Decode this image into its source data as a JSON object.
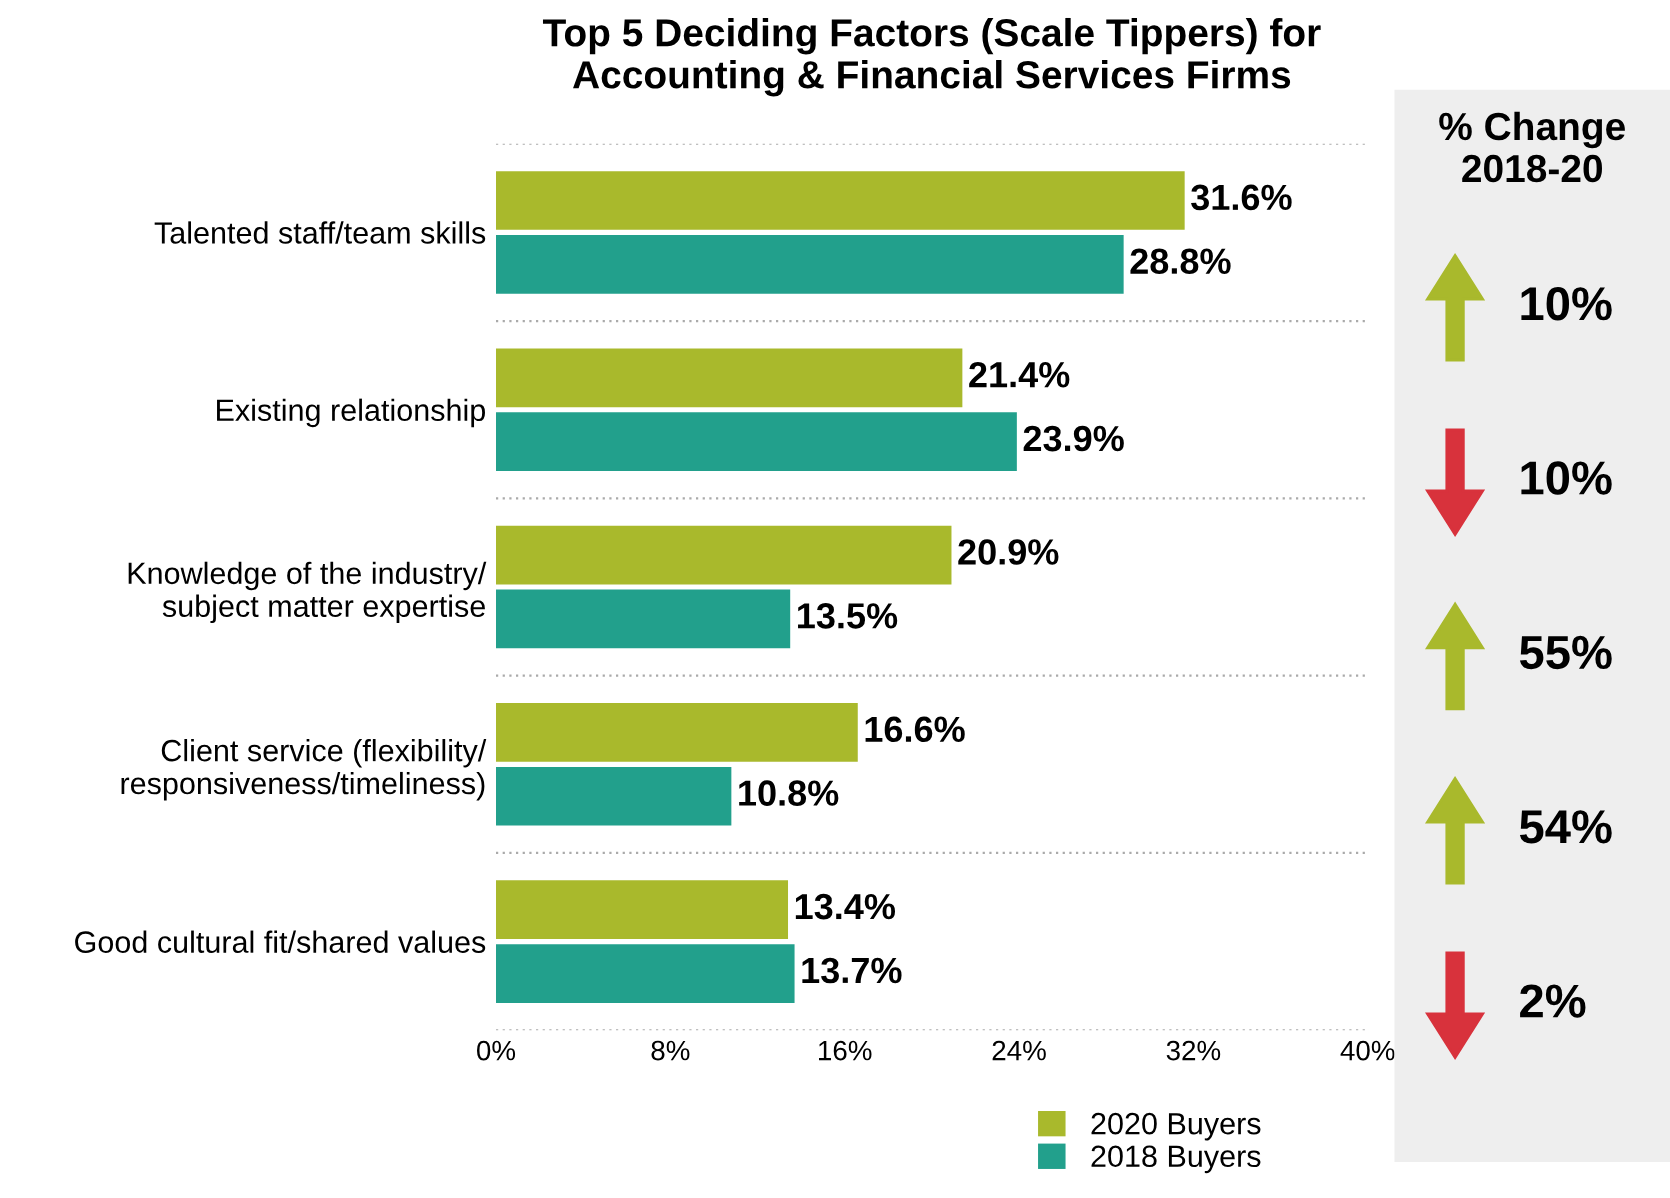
{
  "chart_data": [
    {
      "type": "bar",
      "orientation": "horizontal",
      "title": "Top 5 Deciding Factors (Scale Tippers) for\nAccounting & Financial Services Firms",
      "categories": [
        "Talented staff/team skills",
        "Existing relationship",
        "Knowledge of the industry/\nsubject matter expertise",
        "Client service (flexibility/\nresponsiveness/timeliness)",
        "Good cultural fit/shared values"
      ],
      "series": [
        {
          "name": "2020 Buyers",
          "color": "#a9b92c",
          "values": [
            31.6,
            21.4,
            20.9,
            16.6,
            13.4
          ],
          "value_labels": [
            "31.6%",
            "21.4%",
            "20.9%",
            "16.6%",
            "13.4%"
          ]
        },
        {
          "name": "2018 Buyers",
          "color": "#22a08c",
          "values": [
            28.8,
            23.9,
            13.5,
            10.8,
            13.7
          ],
          "value_labels": [
            "28.8%",
            "23.9%",
            "13.5%",
            "10.8%",
            "13.7%"
          ]
        }
      ],
      "xlim": [
        0,
        40
      ],
      "xticks": [
        {
          "value": 0,
          "label": "0%"
        },
        {
          "value": 8,
          "label": "8%"
        },
        {
          "value": 16,
          "label": "16%"
        },
        {
          "value": 24,
          "label": "24%"
        },
        {
          "value": 32,
          "label": "32%"
        },
        {
          "value": 40,
          "label": "40%"
        }
      ],
      "grid": "y",
      "legend": "bottom"
    },
    {
      "type": "other",
      "title": "% Change\n2018-20",
      "annotations": [
        "10%",
        "10%",
        "55%",
        "54%",
        "2%"
      ],
      "colors": [
        "#a9b92c",
        "#d8323c",
        "#a9b92c",
        "#a9b92c",
        "#d8323c"
      ]
    }
  ]
}
